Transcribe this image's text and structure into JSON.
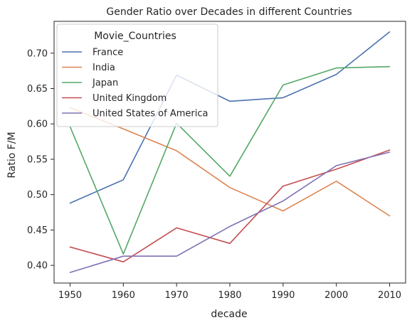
{
  "chart_data": {
    "type": "line",
    "title": "Gender Ratio over Decades in different Countries",
    "xlabel": "decade",
    "ylabel": "Ratio F/M",
    "x": [
      1950,
      1960,
      1970,
      1980,
      1990,
      2000,
      2010
    ],
    "xticks": [
      1950,
      1960,
      1970,
      1980,
      1990,
      2000,
      2010
    ],
    "xticklabels": [
      "1950",
      "1960",
      "1970",
      "1980",
      "1990",
      "2000",
      "2010"
    ],
    "yticks": [
      0.4,
      0.45,
      0.5,
      0.55,
      0.6,
      0.65,
      0.7
    ],
    "yticklabels": [
      "0.40",
      "0.45",
      "0.50",
      "0.55",
      "0.60",
      "0.65",
      "0.70"
    ],
    "xlim": [
      1947,
      2013
    ],
    "ylim": [
      0.375,
      0.745
    ],
    "grid": false,
    "legend": {
      "title": "Movie_Countries",
      "placement": "top-left"
    },
    "series": [
      {
        "name": "France",
        "color": "#4c72b0",
        "values": [
          0.488,
          0.521,
          0.669,
          0.632,
          0.637,
          0.67,
          0.73
        ]
      },
      {
        "name": "India",
        "color": "#dd8452",
        "values": [
          0.623,
          0.593,
          0.562,
          0.51,
          0.477,
          0.519,
          0.47
        ]
      },
      {
        "name": "Japan",
        "color": "#55a868",
        "values": [
          0.596,
          0.416,
          0.601,
          0.526,
          0.655,
          0.679,
          0.681
        ]
      },
      {
        "name": "United Kingdom",
        "color": "#c44e52",
        "values": [
          0.426,
          0.405,
          0.453,
          0.431,
          0.512,
          0.536,
          0.563
        ]
      },
      {
        "name": "United States of America",
        "color": "#8172b3",
        "values": [
          0.39,
          0.413,
          0.413,
          0.455,
          0.491,
          0.541,
          0.56
        ]
      }
    ]
  }
}
